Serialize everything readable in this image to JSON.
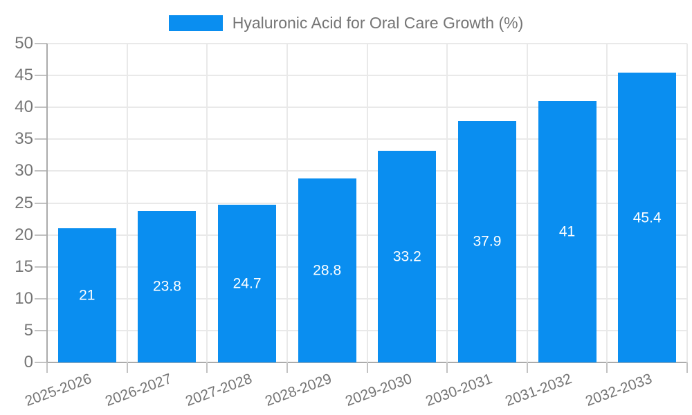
{
  "legend": {
    "label": "Hyaluronic Acid for Oral Care Growth (%)"
  },
  "colors": {
    "bar": "#0a8ef0",
    "grid": "#e9e9e9",
    "axis": "#ababab",
    "tick_mark": "#c2c2c2",
    "tick_text": "#757575",
    "legend_text": "#757575",
    "bar_label_text": "#ffffff",
    "background": "#ffffff"
  },
  "chart_data": {
    "type": "bar",
    "title": "",
    "xlabel": "",
    "ylabel": "",
    "legend": [
      "Hyaluronic Acid for Oral Care Growth (%)"
    ],
    "legend_position": "top",
    "categories": [
      "2025-2026",
      "2026-2027",
      "2027-2028",
      "2028-2029",
      "2029-2030",
      "2030-2031",
      "2031-2032",
      "2032-2033"
    ],
    "values": [
      21,
      23.8,
      24.7,
      28.8,
      33.2,
      37.9,
      41,
      45.4
    ],
    "ylim": [
      0,
      50
    ],
    "ytick_step": 5,
    "ytick_labels": [
      "0",
      "5",
      "10",
      "15",
      "20",
      "25",
      "30",
      "35",
      "40",
      "45",
      "50"
    ],
    "grid": true,
    "bar_value_labels_shown": true,
    "x_label_rotation_deg": -20
  }
}
